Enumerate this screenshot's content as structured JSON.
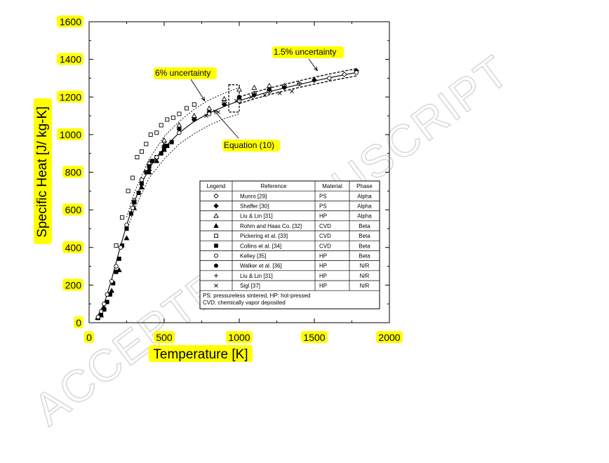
{
  "chart_data": {
    "type": "scatter",
    "xlabel": "Temperature [K]",
    "ylabel": "Specific Heat [J/ kg-K]",
    "xlim": [
      0,
      2000
    ],
    "ylim": [
      0,
      1600
    ],
    "xticks": [
      0,
      500,
      1000,
      1500,
      2000
    ],
    "yticks": [
      0,
      200,
      400,
      600,
      800,
      1000,
      1200,
      1400,
      1600
    ],
    "grid": false,
    "legend_position": "center-right",
    "watermark": "ACCEPTED MANUSCRIPT",
    "annotations": [
      {
        "text": "1.5% uncertainty",
        "arrow_to": [
          1520,
          1340
        ]
      },
      {
        "text": "6% uncertainty",
        "arrow_to": [
          770,
          1180
        ]
      },
      {
        "text": "Equation (10)",
        "arrow_to": [
          830,
          1130
        ]
      }
    ],
    "legend_headers": [
      "Legend",
      "Reference",
      "Material",
      "Phase"
    ],
    "legend_note_lines": [
      "PS: pressureless sintered, HP: hot-pressed",
      "CVD: chemically vapor deposited"
    ],
    "equation_curve": {
      "name": "Equation (10)",
      "x": [
        40,
        60,
        100,
        150,
        200,
        250,
        300,
        350,
        400,
        450,
        500,
        600,
        700,
        800,
        900,
        1000,
        1100,
        1200,
        1300,
        1400,
        1500,
        1600,
        1700,
        1780
      ],
      "y": [
        15,
        40,
        100,
        230,
        380,
        520,
        640,
        740,
        820,
        880,
        930,
        1010,
        1070,
        1115,
        1150,
        1180,
        1205,
        1228,
        1248,
        1267,
        1285,
        1302,
        1318,
        1330
      ]
    },
    "band_6pct": {
      "x": [
        250,
        300,
        400,
        500,
        600,
        700,
        800,
        900,
        1000
      ],
      "upper": [
        560,
        690,
        870,
        990,
        1070,
        1135,
        1185,
        1220,
        1250
      ],
      "lower": [
        490,
        600,
        770,
        870,
        950,
        1005,
        1050,
        1085,
        1110
      ]
    },
    "band_1_5pct": {
      "x": [
        1000,
        1100,
        1200,
        1300,
        1400,
        1500,
        1600,
        1700,
        1780
      ],
      "upper": [
        1200,
        1225,
        1247,
        1267,
        1286,
        1305,
        1322,
        1338,
        1350
      ],
      "lower": [
        1165,
        1190,
        1212,
        1232,
        1251,
        1268,
        1285,
        1300,
        1312
      ]
    },
    "dashed_box": {
      "x": [
        930,
        1000
      ],
      "y": [
        1120,
        1265
      ]
    },
    "series": [
      {
        "name": "Munro [29]",
        "material": "PS",
        "phase": "Alpha",
        "marker": "diamond-open",
        "x": [
          300,
          500,
          700,
          900,
          1100,
          1300,
          1500,
          1700
        ],
        "y": [
          650,
          930,
          1090,
          1170,
          1220,
          1260,
          1290,
          1320
        ]
      },
      {
        "name": "Shaffer [30]",
        "material": "PS",
        "phase": "Alpha",
        "marker": "diamond-filled",
        "x": [
          300,
          400,
          500,
          600,
          700,
          800,
          900,
          1000,
          1100,
          1200,
          1300,
          1500,
          1780
        ],
        "y": [
          640,
          810,
          940,
          1030,
          1080,
          1120,
          1160,
          1190,
          1210,
          1230,
          1250,
          1290,
          1340
        ]
      },
      {
        "name": "Liu & Lin [31]",
        "material": "HP",
        "phase": "Alpha",
        "marker": "triangle-open",
        "x": [
          400,
          500,
          600,
          700,
          800,
          900,
          1000,
          1100,
          1200
        ],
        "y": [
          850,
          970,
          1050,
          1100,
          1140,
          1190,
          1240,
          1250,
          1260
        ]
      },
      {
        "name": "Rohm and Haas Co. [32]",
        "material": "CVD",
        "phase": "Beta",
        "marker": "triangle-filled",
        "x": [
          80,
          100,
          150,
          200,
          250,
          300,
          350,
          400,
          450,
          500
        ],
        "y": [
          40,
          80,
          170,
          280,
          450,
          610,
          720,
          800,
          860,
          920
        ]
      },
      {
        "name": "Pickering et al. [33]",
        "material": "CVD",
        "phase": "Beta",
        "marker": "square-open",
        "x": [
          180,
          220,
          260,
          290,
          320,
          350,
          380,
          410,
          450,
          480,
          520,
          560,
          600,
          650,
          700
        ],
        "y": [
          410,
          560,
          700,
          770,
          880,
          910,
          950,
          1000,
          1010,
          1050,
          1080,
          1090,
          1110,
          1140,
          1160
        ]
      },
      {
        "name": "Collins et al. [34]",
        "material": "CVD",
        "phase": "Beta",
        "marker": "square-filled",
        "x": [
          60,
          80,
          100,
          120,
          140,
          160,
          180,
          200,
          220,
          250,
          280,
          300,
          330,
          350,
          380,
          400,
          420,
          450,
          480,
          500,
          520,
          550
        ],
        "y": [
          25,
          40,
          70,
          110,
          150,
          210,
          270,
          340,
          410,
          500,
          580,
          640,
          690,
          740,
          800,
          830,
          860,
          880,
          900,
          920,
          940,
          960
        ]
      },
      {
        "name": "Kelley [35]",
        "material": "HP",
        "phase": "Beta",
        "marker": "circle-open",
        "x": [
          60,
          80,
          100,
          120,
          150,
          180,
          210,
          250,
          290,
          350,
          450,
          600,
          800,
          1000,
          1200,
          1400,
          1600,
          1780
        ],
        "y": [
          30,
          60,
          100,
          150,
          220,
          300,
          400,
          520,
          610,
          760,
          880,
          1010,
          1110,
          1180,
          1230,
          1270,
          1300,
          1330
        ]
      },
      {
        "name": "Walker et al. [36]",
        "material": "HP",
        "phase": "N/R",
        "marker": "circle-filled",
        "x": [
          1000,
          1200
        ],
        "y": [
          1200,
          1240
        ]
      },
      {
        "name": "Liu & Lin [31]",
        "material": "HP",
        "phase": "N/R",
        "marker": "plus",
        "x": [
          900,
          1000,
          1100,
          1200,
          1300,
          1400
        ],
        "y": [
          1160,
          1190,
          1215,
          1235,
          1255,
          1270
        ]
      },
      {
        "name": "Sigl [37]",
        "material": "HP",
        "phase": "N/R",
        "marker": "x",
        "x": [
          500,
          600,
          700,
          780,
          860,
          980,
          1080,
          1170,
          1270,
          1350
        ],
        "y": [
          950,
          1030,
          1080,
          1100,
          1120,
          1180,
          1200,
          1210,
          1220,
          1230
        ]
      }
    ]
  }
}
